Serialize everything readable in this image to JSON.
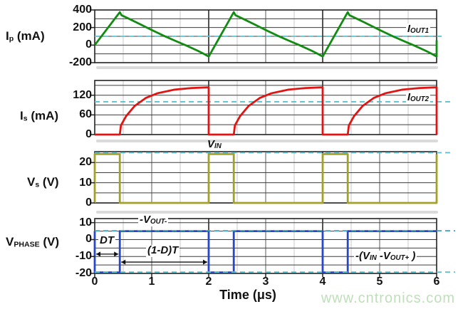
{
  "watermark": "www.cntronics.com",
  "labels": {
    "ip": {
      "pre": "I",
      "sub": "p",
      "post": " (mA)"
    },
    "is": {
      "pre": "I",
      "sub": "s",
      "post": " (mA)"
    },
    "vs": {
      "pre": "V",
      "sub": "s",
      "post": " (V)"
    },
    "vphase": {
      "pre": "V",
      "sub": "PHASE",
      "post": " (V)"
    },
    "iout1": {
      "pre": "I",
      "sub": "OUT1"
    },
    "iout2": {
      "pre": "I",
      "sub": "OUT2"
    },
    "vin": {
      "pre": "V",
      "sub": "IN"
    },
    "vout_neg": {
      "pre": "-V",
      "sub": "OUT-"
    },
    "dt": {
      "pre": "DT"
    },
    "one_minus_dt": {
      "pre": "(1-D)T"
    },
    "vin_vout": {
      "p1": "-(V",
      "s1": "IN",
      "p2": " -V",
      "s2": "OUT+",
      "p3": " )"
    }
  },
  "chart_data": {
    "type": "line",
    "title": "",
    "xlabel": "Time (μs)",
    "x_range": [
      0,
      6
    ],
    "x_ticks": [
      0,
      1,
      2,
      3,
      4,
      5,
      6
    ],
    "x_tick_labels": [
      "0",
      "1",
      "2",
      "3",
      "4",
      "5",
      "6"
    ],
    "x_minor_step": 0.5,
    "grid": true,
    "period_us": 2,
    "duty_on_time_us": 0.44,
    "plots": [
      {
        "name": "Ip",
        "ylabel": "Ip (mA)",
        "y_range": [
          -200,
          400
        ],
        "y_gridlines": [
          -100,
          0,
          100,
          200,
          300
        ],
        "y_ticks": [
          {
            "value": 400,
            "label": "400"
          },
          {
            "value": 200,
            "label": "200"
          },
          {
            "value": 0,
            "label": "0"
          },
          {
            "value": -200,
            "label": "-200"
          }
        ],
        "line_color": "#118c11",
        "ref_lines": [
          {
            "value": 100,
            "label": "IOUT1",
            "color": "#58c4d4"
          }
        ],
        "points": [
          [
            0,
            0
          ],
          [
            0.44,
            375
          ],
          [
            0.47,
            340
          ],
          [
            0.6,
            300
          ],
          [
            0.8,
            237
          ],
          [
            1.0,
            172
          ],
          [
            1.2,
            110
          ],
          [
            1.4,
            52
          ],
          [
            1.6,
            -3
          ],
          [
            1.8,
            -62
          ],
          [
            1.9,
            -95
          ],
          [
            2,
            -130
          ],
          [
            2.44,
            375
          ],
          [
            2.47,
            340
          ],
          [
            2.6,
            300
          ],
          [
            2.8,
            237
          ],
          [
            3.0,
            172
          ],
          [
            3.2,
            110
          ],
          [
            3.4,
            52
          ],
          [
            3.6,
            -3
          ],
          [
            3.8,
            -62
          ],
          [
            3.9,
            -95
          ],
          [
            4,
            -130
          ],
          [
            4.44,
            375
          ],
          [
            4.47,
            340
          ],
          [
            4.6,
            300
          ],
          [
            4.8,
            237
          ],
          [
            5.0,
            172
          ],
          [
            5.2,
            110
          ],
          [
            5.4,
            52
          ],
          [
            5.6,
            -3
          ],
          [
            5.8,
            -62
          ],
          [
            5.9,
            -95
          ],
          [
            6,
            -130
          ],
          [
            6,
            55
          ]
        ]
      },
      {
        "name": "Is",
        "ylabel": "Is (mA)",
        "y_range": [
          0,
          165
        ],
        "y_gridlines": [
          30,
          60,
          90,
          120,
          150
        ],
        "y_ticks": [
          {
            "value": 120,
            "label": "120"
          },
          {
            "value": 60,
            "label": "60"
          },
          {
            "value": 0,
            "label": "0"
          }
        ],
        "line_color": "#e11414",
        "ref_lines": [
          {
            "value": 100,
            "label": "IOUT2",
            "color": "#58c4d4"
          }
        ],
        "points": [
          [
            0,
            0
          ],
          [
            0.44,
            0
          ],
          [
            0.46,
            28
          ],
          [
            0.55,
            56
          ],
          [
            0.7,
            87
          ],
          [
            0.9,
            112
          ],
          [
            1.1,
            126
          ],
          [
            1.4,
            137
          ],
          [
            1.7,
            142
          ],
          [
            2,
            144
          ],
          [
            2,
            0
          ],
          [
            2.44,
            0
          ],
          [
            2.46,
            28
          ],
          [
            2.55,
            56
          ],
          [
            2.7,
            87
          ],
          [
            2.9,
            112
          ],
          [
            3.1,
            126
          ],
          [
            3.4,
            137
          ],
          [
            3.7,
            142
          ],
          [
            4,
            144
          ],
          [
            4,
            0
          ],
          [
            4.44,
            0
          ],
          [
            4.46,
            28
          ],
          [
            4.55,
            56
          ],
          [
            4.7,
            87
          ],
          [
            4.9,
            112
          ],
          [
            5.1,
            126
          ],
          [
            5.4,
            137
          ],
          [
            5.7,
            142
          ],
          [
            6,
            144
          ],
          [
            6,
            0
          ]
        ]
      },
      {
        "name": "Vs",
        "ylabel": "Vs (V)",
        "y_range": [
          0,
          25.4
        ],
        "y_gridlines": [
          5,
          10,
          15,
          20
        ],
        "y_ticks": [
          {
            "value": 20,
            "label": "20"
          },
          {
            "value": 10,
            "label": "10"
          },
          {
            "value": 0,
            "label": "0"
          }
        ],
        "line_color": "#a3a127",
        "ref_lines": [
          {
            "value": 24.9,
            "label": "VIN",
            "color": "#58c4d4"
          }
        ],
        "points": [
          [
            0,
            0
          ],
          [
            0,
            24.2
          ],
          [
            0.44,
            24.2
          ],
          [
            0.44,
            0
          ],
          [
            2,
            0
          ],
          [
            2,
            24.2
          ],
          [
            2.44,
            24.2
          ],
          [
            2.44,
            0
          ],
          [
            4,
            0
          ],
          [
            4,
            24.2
          ],
          [
            4.44,
            24.2
          ],
          [
            4.44,
            0
          ],
          [
            6,
            0
          ],
          [
            6,
            24.2
          ]
        ]
      },
      {
        "name": "Vphase",
        "ylabel": "VPHASE (V)",
        "y_range": [
          -20,
          12.4
        ],
        "y_gridlines": [
          -15,
          -10,
          -5,
          0,
          5,
          10
        ],
        "y_ticks": [
          {
            "value": 10,
            "label": "10"
          },
          {
            "value": 0,
            "label": "0"
          },
          {
            "value": -10,
            "label": "-10"
          },
          {
            "value": -20,
            "label": "-20"
          }
        ],
        "line_color": "#2746c8",
        "ref_lines": [
          {
            "value": 5.2,
            "label": "-VOUT-",
            "color": "#3f9fc4"
          },
          {
            "value": -19.2,
            "label": "-(VIN-VOUT+)",
            "color": "#58c4d4"
          }
        ],
        "points": [
          [
            0,
            5
          ],
          [
            0,
            -19.4
          ],
          [
            0.44,
            -19.4
          ],
          [
            0.44,
            5
          ],
          [
            2,
            5
          ],
          [
            2,
            -19.4
          ],
          [
            2.44,
            -19.4
          ],
          [
            2.44,
            5
          ],
          [
            4,
            5
          ],
          [
            4,
            -19.4
          ],
          [
            4.44,
            -19.4
          ],
          [
            4.44,
            5
          ],
          [
            6,
            5
          ]
        ],
        "arrows": [
          {
            "label": "DT",
            "from_t": 0,
            "to_t": 0.44,
            "v": -8.6
          },
          {
            "label": "(1-D)T",
            "from_t": 0.44,
            "to_t": 2,
            "v": -13.3
          }
        ]
      }
    ]
  }
}
